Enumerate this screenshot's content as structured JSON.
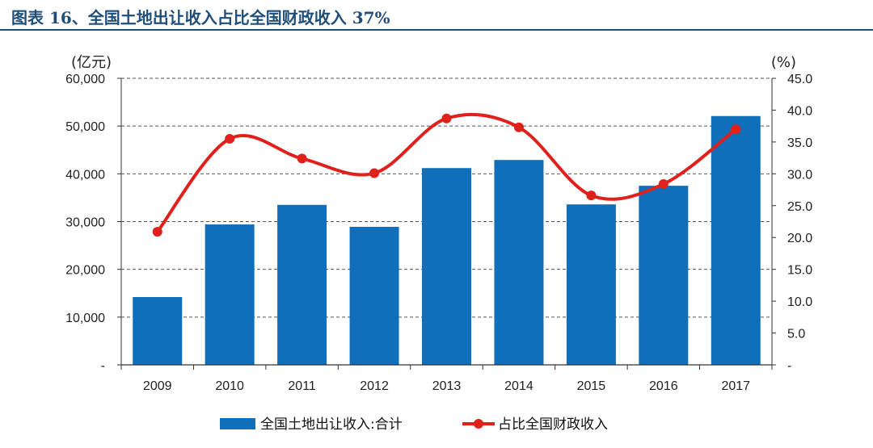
{
  "page": {
    "title": "图表 16、全国土地出让收入占比全国财政收入 37%"
  },
  "chart_data": {
    "type": "bar",
    "categories": [
      "2009",
      "2010",
      "2011",
      "2012",
      "2013",
      "2014",
      "2015",
      "2016",
      "2017"
    ],
    "left_axis": {
      "unit_label": "(亿元)",
      "ylim": [
        0,
        60000
      ],
      "ticks": [
        0,
        10000,
        20000,
        30000,
        40000,
        50000,
        60000
      ],
      "tick_labels": [
        "-",
        "10,000",
        "20,000",
        "30,000",
        "40,000",
        "50,000",
        "60,000"
      ]
    },
    "right_axis": {
      "unit_label": "(%)",
      "ylim": [
        0,
        45
      ],
      "ticks": [
        0,
        5,
        10,
        15,
        20,
        25,
        30,
        35,
        40,
        45
      ],
      "tick_labels": [
        "-",
        "5.0",
        "10.0",
        "15.0",
        "20.0",
        "25.0",
        "30.0",
        "35.0",
        "40.0",
        "45.0"
      ]
    },
    "series": [
      {
        "name": "全国土地出让收入:合计",
        "type": "bar",
        "axis": "left",
        "color": "#0f6fba",
        "values": [
          14200,
          29400,
          33500,
          28900,
          41200,
          42900,
          33600,
          37500,
          52100
        ]
      },
      {
        "name": "占比全国财政收入",
        "type": "line",
        "axis": "right",
        "color": "#e0201b",
        "smooth": true,
        "values": [
          20.9,
          35.5,
          32.4,
          30.1,
          38.7,
          37.3,
          26.6,
          28.4,
          37.0
        ]
      }
    ],
    "grid": "horizontal-dashed",
    "legend_position": "bottom"
  }
}
